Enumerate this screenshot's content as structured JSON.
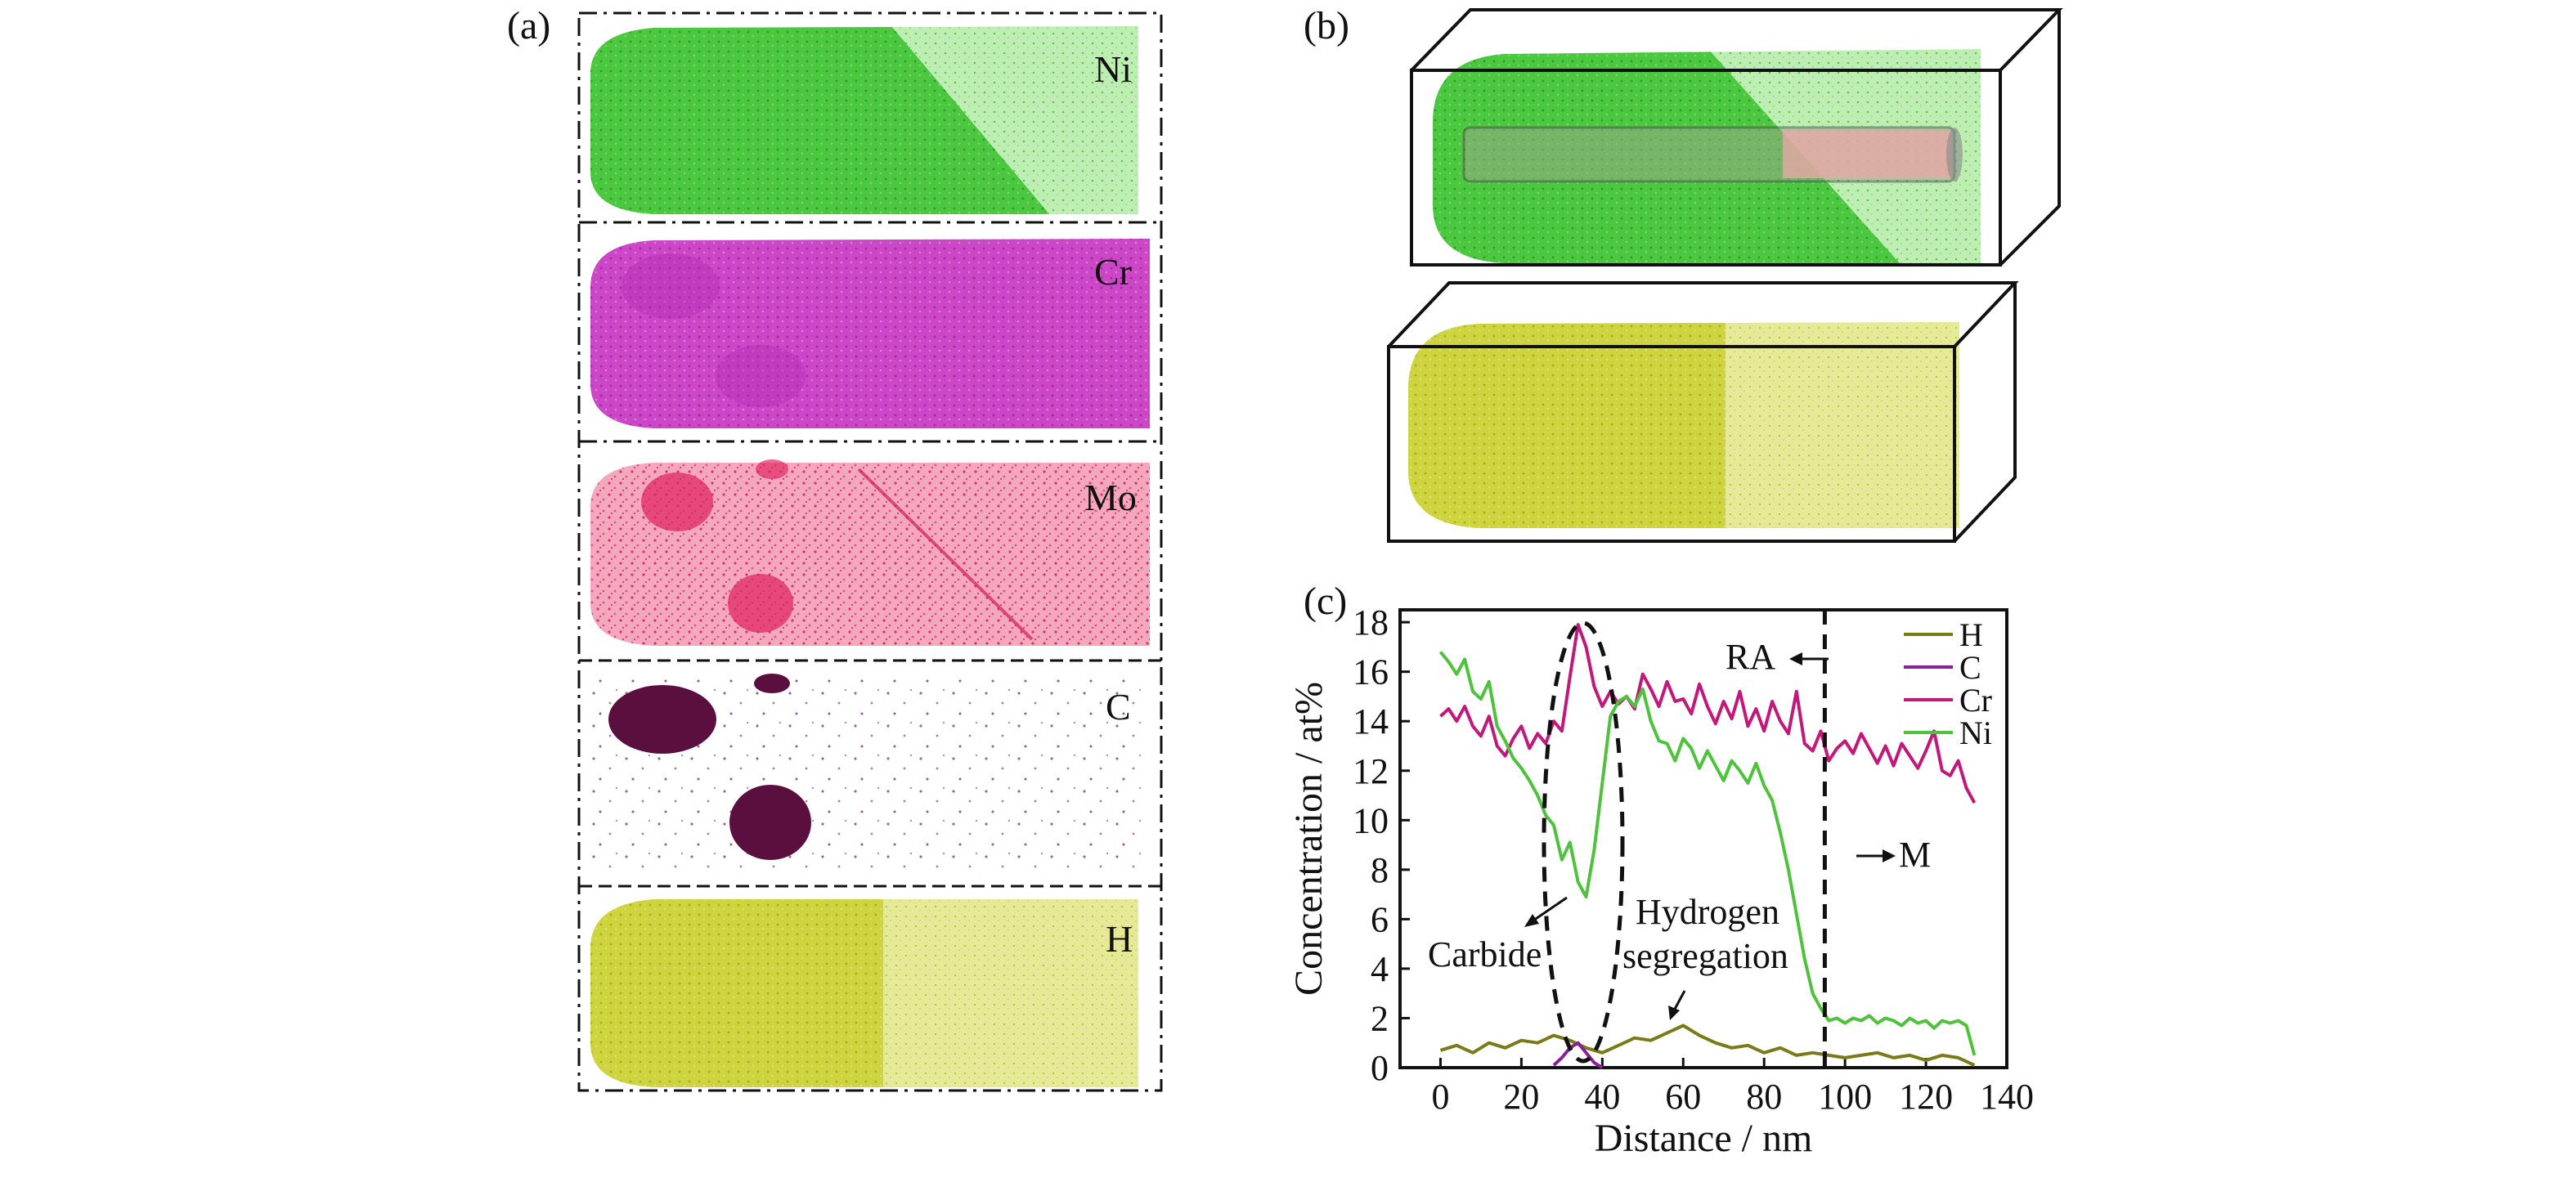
{
  "panels": {
    "a": "(a)",
    "b": "(b)",
    "c": "(c)"
  },
  "apt_maps": [
    {
      "element": "Ni",
      "color": "#46c23a"
    },
    {
      "element": "Cr",
      "color": "#c23bbf"
    },
    {
      "element": "Mo",
      "color": "#e0306a"
    },
    {
      "element": "C",
      "color": "#5a0f3e"
    },
    {
      "element": "H",
      "color": "#c8d22e"
    }
  ],
  "colors": {
    "ni": "#46c23a",
    "ni_light": "#a8e89c",
    "cylinder": "#e7a8a8",
    "h": "#c8d22e",
    "h_dark": "#a9b018"
  },
  "chart_data": {
    "type": "line",
    "xlabel": "Distance / nm",
    "ylabel": "Concentration / at%",
    "xlim": [
      -10,
      140
    ],
    "ylim": [
      0,
      18.5
    ],
    "xticks": [
      0,
      20,
      40,
      60,
      80,
      100,
      120,
      140
    ],
    "yticks": [
      0,
      2,
      4,
      6,
      8,
      10,
      12,
      14,
      16,
      18
    ],
    "legend_position": "top-right",
    "series": [
      {
        "name": "H",
        "color": "#7a7a18",
        "x": [
          0,
          4,
          8,
          12,
          16,
          20,
          24,
          28,
          32,
          36,
          40,
          44,
          48,
          52,
          56,
          60,
          64,
          68,
          72,
          76,
          80,
          84,
          88,
          92,
          96,
          100,
          104,
          108,
          112,
          116,
          120,
          124,
          128,
          132
        ],
        "y": [
          0.7,
          0.9,
          0.6,
          1.0,
          0.8,
          1.1,
          1.0,
          1.3,
          1.1,
          0.8,
          0.6,
          0.9,
          1.2,
          1.1,
          1.4,
          1.7,
          1.3,
          1.0,
          0.8,
          0.9,
          0.6,
          0.8,
          0.5,
          0.6,
          0.5,
          0.4,
          0.5,
          0.6,
          0.4,
          0.5,
          0.3,
          0.5,
          0.4,
          0.1
        ]
      },
      {
        "name": "C",
        "color": "#8a1f9a",
        "x": [
          28,
          30,
          32,
          34,
          36,
          38,
          40
        ],
        "y": [
          0.1,
          0.4,
          0.8,
          1.0,
          0.6,
          0.2,
          0.0
        ]
      },
      {
        "name": "Cr",
        "color": "#c2187a",
        "x": [
          0,
          2,
          4,
          6,
          8,
          10,
          12,
          14,
          16,
          18,
          20,
          22,
          24,
          26,
          28,
          30,
          32,
          34,
          36,
          38,
          40,
          42,
          44,
          46,
          48,
          50,
          52,
          54,
          56,
          58,
          60,
          62,
          64,
          66,
          68,
          70,
          72,
          74,
          76,
          78,
          80,
          82,
          84,
          86,
          88,
          90,
          92,
          94,
          96,
          98,
          100,
          102,
          104,
          106,
          108,
          110,
          112,
          114,
          116,
          118,
          120,
          122,
          124,
          126,
          128,
          130,
          132
        ],
        "y": [
          14.2,
          14.5,
          14.0,
          14.6,
          13.8,
          13.4,
          14.2,
          13.0,
          12.6,
          13.3,
          13.8,
          12.9,
          13.5,
          13.1,
          14.0,
          13.6,
          15.8,
          17.9,
          17.0,
          15.4,
          14.6,
          15.2,
          14.7,
          15.0,
          14.5,
          15.9,
          15.3,
          14.6,
          15.6,
          14.8,
          14.9,
          14.3,
          15.5,
          14.6,
          13.9,
          14.8,
          14.1,
          15.2,
          13.8,
          14.5,
          13.6,
          14.8,
          14.0,
          13.5,
          15.2,
          13.1,
          12.8,
          13.6,
          12.4,
          12.9,
          13.2,
          12.7,
          13.5,
          12.9,
          12.3,
          13.0,
          12.2,
          13.1,
          12.6,
          12.1,
          12.8,
          13.6,
          12.0,
          11.8,
          12.4,
          11.3,
          10.7
        ]
      },
      {
        "name": "Ni",
        "color": "#4ec23c",
        "x": [
          0,
          2,
          4,
          6,
          8,
          10,
          12,
          14,
          16,
          18,
          20,
          22,
          24,
          26,
          28,
          30,
          32,
          34,
          36,
          38,
          40,
          42,
          44,
          46,
          48,
          50,
          52,
          54,
          56,
          58,
          60,
          62,
          64,
          66,
          68,
          70,
          72,
          74,
          76,
          78,
          80,
          82,
          84,
          86,
          88,
          90,
          92,
          94,
          96,
          98,
          100,
          102,
          104,
          106,
          108,
          110,
          112,
          114,
          116,
          118,
          120,
          122,
          124,
          126,
          128,
          130,
          132
        ],
        "y": [
          16.8,
          16.4,
          15.9,
          16.5,
          15.2,
          14.9,
          15.6,
          13.8,
          13.2,
          12.5,
          12.1,
          11.6,
          11.0,
          10.2,
          9.8,
          8.4,
          9.1,
          7.5,
          6.9,
          8.8,
          11.5,
          14.2,
          14.8,
          15.0,
          14.6,
          15.3,
          14.0,
          13.2,
          13.1,
          12.4,
          13.3,
          12.9,
          12.1,
          12.8,
          12.2,
          11.6,
          12.4,
          12.0,
          11.5,
          12.3,
          11.4,
          10.8,
          9.5,
          8.0,
          6.2,
          4.4,
          3.0,
          2.4,
          1.9,
          2.0,
          1.8,
          2.0,
          1.9,
          2.1,
          1.8,
          2.0,
          1.9,
          1.7,
          2.0,
          1.8,
          1.9,
          1.6,
          1.9,
          1.8,
          1.9,
          1.7,
          0.5
        ]
      }
    ],
    "vline_x": 95,
    "annotations": {
      "ra": "RA",
      "m": "M",
      "carbide": "Carbide",
      "hydrogen_line1": "Hydrogen",
      "hydrogen_line2": "segregation"
    }
  }
}
